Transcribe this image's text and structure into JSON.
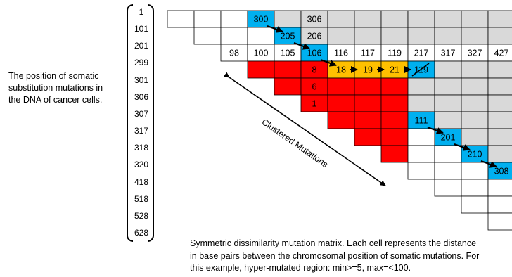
{
  "description_lines": [
    "The position of somatic",
    "substitution mutations in",
    "the DNA of cancer cells."
  ],
  "positions": [
    "1",
    "101",
    "201",
    "299",
    "301",
    "306",
    "307",
    "317",
    "318",
    "320",
    "418",
    "518",
    "528",
    "628"
  ],
  "matrix": {
    "cells": [
      {
        "r": 0,
        "c": 0,
        "fill": "#ffffff",
        "text": ""
      },
      {
        "r": 0,
        "c": 1,
        "fill": "#ffffff",
        "text": ""
      },
      {
        "r": 0,
        "c": 2,
        "fill": "#ffffff",
        "text": ""
      },
      {
        "r": 0,
        "c": 3,
        "fill": "#00b0f0",
        "text": "300"
      },
      {
        "r": 0,
        "c": 4,
        "fill": "#d9d9d9",
        "text": ""
      },
      {
        "r": 0,
        "c": 5,
        "fill": "#d9d9d9",
        "text": "306"
      },
      {
        "r": 0,
        "c": 6,
        "fill": "#d9d9d9",
        "text": ""
      },
      {
        "r": 0,
        "c": 7,
        "fill": "#d9d9d9",
        "text": ""
      },
      {
        "r": 0,
        "c": 8,
        "fill": "#d9d9d9",
        "text": ""
      },
      {
        "r": 0,
        "c": 9,
        "fill": "#d9d9d9",
        "text": ""
      },
      {
        "r": 0,
        "c": 10,
        "fill": "#d9d9d9",
        "text": ""
      },
      {
        "r": 0,
        "c": 11,
        "fill": "#d9d9d9",
        "text": ""
      },
      {
        "r": 0,
        "c": 12,
        "fill": "#d9d9d9",
        "text": ""
      },
      {
        "r": 1,
        "c": 1,
        "fill": "#ffffff",
        "text": ""
      },
      {
        "r": 1,
        "c": 2,
        "fill": "#ffffff",
        "text": ""
      },
      {
        "r": 1,
        "c": 3,
        "fill": "#ffffff",
        "text": ""
      },
      {
        "r": 1,
        "c": 4,
        "fill": "#00b0f0",
        "text": "205"
      },
      {
        "r": 1,
        "c": 5,
        "fill": "#d9d9d9",
        "text": "206"
      },
      {
        "r": 1,
        "c": 6,
        "fill": "#d9d9d9",
        "text": ""
      },
      {
        "r": 1,
        "c": 7,
        "fill": "#d9d9d9",
        "text": ""
      },
      {
        "r": 1,
        "c": 8,
        "fill": "#d9d9d9",
        "text": ""
      },
      {
        "r": 1,
        "c": 9,
        "fill": "#d9d9d9",
        "text": ""
      },
      {
        "r": 1,
        "c": 10,
        "fill": "#d9d9d9",
        "text": ""
      },
      {
        "r": 1,
        "c": 11,
        "fill": "#d9d9d9",
        "text": ""
      },
      {
        "r": 1,
        "c": 12,
        "fill": "#d9d9d9",
        "text": ""
      },
      {
        "r": 2,
        "c": 2,
        "fill": "#ffffff",
        "text": "98"
      },
      {
        "r": 2,
        "c": 3,
        "fill": "#ffffff",
        "text": "100"
      },
      {
        "r": 2,
        "c": 4,
        "fill": "#ffffff",
        "text": "105"
      },
      {
        "r": 2,
        "c": 5,
        "fill": "#00b0f0",
        "text": "106"
      },
      {
        "r": 2,
        "c": 6,
        "fill": "#ffffff",
        "text": "116"
      },
      {
        "r": 2,
        "c": 7,
        "fill": "#ffffff",
        "text": "117"
      },
      {
        "r": 2,
        "c": 8,
        "fill": "#ffffff",
        "text": "119"
      },
      {
        "r": 2,
        "c": 9,
        "fill": "#ffffff",
        "text": "217"
      },
      {
        "r": 2,
        "c": 10,
        "fill": "#ffffff",
        "text": "317"
      },
      {
        "r": 2,
        "c": 11,
        "fill": "#ffffff",
        "text": "327"
      },
      {
        "r": 2,
        "c": 12,
        "fill": "#ffffff",
        "text": "427"
      },
      {
        "r": 3,
        "c": 3,
        "fill": "#ff0000",
        "text": ""
      },
      {
        "r": 3,
        "c": 4,
        "fill": "#ff0000",
        "text": ""
      },
      {
        "r": 3,
        "c": 5,
        "fill": "#ff0000",
        "text": "8"
      },
      {
        "r": 3,
        "c": 6,
        "fill": "#ffc000",
        "text": "18"
      },
      {
        "r": 3,
        "c": 7,
        "fill": "#ffc000",
        "text": "19"
      },
      {
        "r": 3,
        "c": 8,
        "fill": "#ffc000",
        "text": "21"
      },
      {
        "r": 3,
        "c": 9,
        "fill": "#00b0f0",
        "text": "119"
      },
      {
        "r": 3,
        "c": 10,
        "fill": "#d9d9d9",
        "text": ""
      },
      {
        "r": 3,
        "c": 11,
        "fill": "#d9d9d9",
        "text": ""
      },
      {
        "r": 3,
        "c": 12,
        "fill": "#d9d9d9",
        "text": ""
      },
      {
        "r": 4,
        "c": 4,
        "fill": "#ff0000",
        "text": ""
      },
      {
        "r": 4,
        "c": 5,
        "fill": "#ff0000",
        "text": "6"
      },
      {
        "r": 4,
        "c": 6,
        "fill": "#ff0000",
        "text": ""
      },
      {
        "r": 4,
        "c": 7,
        "fill": "#ff0000",
        "text": ""
      },
      {
        "r": 4,
        "c": 8,
        "fill": "#ff0000",
        "text": ""
      },
      {
        "r": 4,
        "c": 9,
        "fill": "#d9d9d9",
        "text": ""
      },
      {
        "r": 4,
        "c": 10,
        "fill": "#d9d9d9",
        "text": ""
      },
      {
        "r": 4,
        "c": 11,
        "fill": "#d9d9d9",
        "text": ""
      },
      {
        "r": 4,
        "c": 12,
        "fill": "#d9d9d9",
        "text": ""
      },
      {
        "r": 5,
        "c": 5,
        "fill": "#ff0000",
        "text": "1"
      },
      {
        "r": 5,
        "c": 6,
        "fill": "#ff0000",
        "text": ""
      },
      {
        "r": 5,
        "c": 7,
        "fill": "#ff0000",
        "text": ""
      },
      {
        "r": 5,
        "c": 8,
        "fill": "#ff0000",
        "text": ""
      },
      {
        "r": 5,
        "c": 9,
        "fill": "#d9d9d9",
        "text": ""
      },
      {
        "r": 5,
        "c": 10,
        "fill": "#d9d9d9",
        "text": ""
      },
      {
        "r": 5,
        "c": 11,
        "fill": "#d9d9d9",
        "text": ""
      },
      {
        "r": 5,
        "c": 12,
        "fill": "#d9d9d9",
        "text": ""
      },
      {
        "r": 6,
        "c": 6,
        "fill": "#ff0000",
        "text": ""
      },
      {
        "r": 6,
        "c": 7,
        "fill": "#ff0000",
        "text": ""
      },
      {
        "r": 6,
        "c": 8,
        "fill": "#ff0000",
        "text": ""
      },
      {
        "r": 6,
        "c": 9,
        "fill": "#00b0f0",
        "text": "111"
      },
      {
        "r": 6,
        "c": 10,
        "fill": "#d9d9d9",
        "text": ""
      },
      {
        "r": 6,
        "c": 11,
        "fill": "#d9d9d9",
        "text": ""
      },
      {
        "r": 6,
        "c": 12,
        "fill": "#d9d9d9",
        "text": ""
      },
      {
        "r": 7,
        "c": 7,
        "fill": "#ff0000",
        "text": ""
      },
      {
        "r": 7,
        "c": 8,
        "fill": "#ff0000",
        "text": ""
      },
      {
        "r": 7,
        "c": 9,
        "fill": "#ffffff",
        "text": ""
      },
      {
        "r": 7,
        "c": 10,
        "fill": "#00b0f0",
        "text": "201"
      },
      {
        "r": 7,
        "c": 11,
        "fill": "#d9d9d9",
        "text": ""
      },
      {
        "r": 7,
        "c": 12,
        "fill": "#d9d9d9",
        "text": ""
      },
      {
        "r": 8,
        "c": 8,
        "fill": "#ff0000",
        "text": ""
      },
      {
        "r": 8,
        "c": 9,
        "fill": "#ffffff",
        "text": ""
      },
      {
        "r": 8,
        "c": 10,
        "fill": "#ffffff",
        "text": ""
      },
      {
        "r": 8,
        "c": 11,
        "fill": "#00b0f0",
        "text": "210"
      },
      {
        "r": 8,
        "c": 12,
        "fill": "#d9d9d9",
        "text": ""
      },
      {
        "r": 9,
        "c": 9,
        "fill": "#ffffff",
        "text": ""
      },
      {
        "r": 9,
        "c": 10,
        "fill": "#ffffff",
        "text": ""
      },
      {
        "r": 9,
        "c": 11,
        "fill": "#ffffff",
        "text": ""
      },
      {
        "r": 9,
        "c": 12,
        "fill": "#00b0f0",
        "text": "308"
      },
      {
        "r": 10,
        "c": 10,
        "fill": "#ffffff",
        "text": ""
      },
      {
        "r": 10,
        "c": 11,
        "fill": "#ffffff",
        "text": ""
      },
      {
        "r": 10,
        "c": 12,
        "fill": "#ffffff",
        "text": ""
      },
      {
        "r": 11,
        "c": 11,
        "fill": "#ffffff",
        "text": ""
      },
      {
        "r": 11,
        "c": 12,
        "fill": "#ffffff",
        "text": ""
      },
      {
        "r": 12,
        "c": 12,
        "fill": "#ffffff",
        "text": ""
      }
    ],
    "path_arrows": [
      {
        "from": [
          0,
          3
        ],
        "to": [
          1,
          4
        ]
      },
      {
        "from": [
          1,
          4
        ],
        "to": [
          2,
          5
        ]
      },
      {
        "from": [
          2,
          5
        ],
        "to": [
          3,
          6
        ]
      },
      {
        "from": [
          3,
          6
        ],
        "to": [
          3,
          7
        ]
      },
      {
        "from": [
          3,
          7
        ],
        "to": [
          3,
          8
        ]
      },
      {
        "from": [
          3,
          8
        ],
        "to": [
          3,
          9
        ]
      },
      {
        "from": [
          6,
          9
        ],
        "to": [
          7,
          10
        ]
      },
      {
        "from": [
          7,
          10
        ],
        "to": [
          8,
          11
        ]
      },
      {
        "from": [
          8,
          11
        ],
        "to": [
          9,
          12
        ]
      }
    ],
    "crossed_cell": [
      3,
      9
    ]
  },
  "clustered_label": "Clustered Mutations",
  "caption_lines": [
    "Symmetric dissimilarity mutation matrix. Each cell represents the distance",
    "in base pairs between the chromosomal position of somatic mutations. For",
    "this example, hyper-mutated region: min>=5, max=<100."
  ]
}
